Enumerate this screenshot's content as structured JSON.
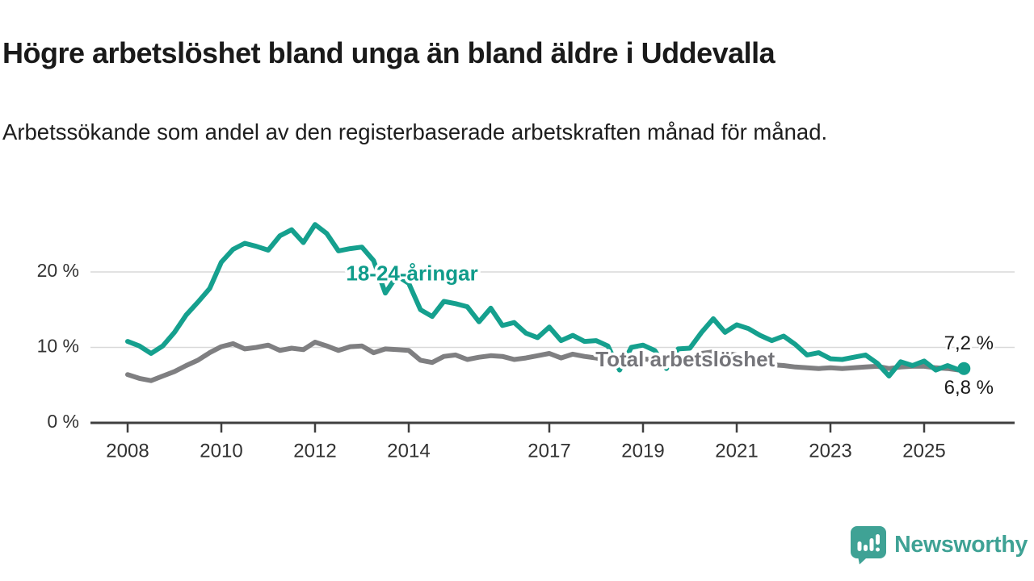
{
  "title": "Högre arbetslöshet bland unga än bland äldre i Uddevalla",
  "subtitle": "Arbetssökande som andel av den registerbaserade arbetskraften månad för månad.",
  "branding": {
    "logo_text": "Newsworthy",
    "logo_icon": "newsworthy-speech-bubble-bar-chart-icon",
    "logo_color": "#3fa295"
  },
  "colors": {
    "youth_line": "#15a08e",
    "total_line": "#7f7f81",
    "total_label": "#75757a",
    "axis": "#3f3f3f",
    "grid": "#d9d9d9",
    "text": "#333333",
    "value_label": "#1a1a1a",
    "background": "#ffffff"
  },
  "chart_data": {
    "type": "line",
    "title": "Högre arbetslöshet bland unga än bland äldre i Uddevalla",
    "xlabel": "",
    "ylabel": "Arbetssökande som andel av den registerbaserade arbetskraften",
    "x_unit": "decimal year (monthly series)",
    "x_range": [
      2008.0,
      2025.85
    ],
    "ylim": [
      0,
      28
    ],
    "grid": "horizontal",
    "legend_position": "inline-labels",
    "yticks": [
      {
        "value": 0,
        "label": "0 %"
      },
      {
        "value": 10,
        "label": "10 %"
      },
      {
        "value": 20,
        "label": "20 %"
      }
    ],
    "xticks": [
      {
        "value": 2008,
        "label": "2008"
      },
      {
        "value": 2010,
        "label": "2010"
      },
      {
        "value": 2012,
        "label": "2012"
      },
      {
        "value": 2014,
        "label": "2014"
      },
      {
        "value": 2017,
        "label": "2017"
      },
      {
        "value": 2019,
        "label": "2019"
      },
      {
        "value": 2021,
        "label": "2021"
      },
      {
        "value": 2023,
        "label": "2023"
      },
      {
        "value": 2025,
        "label": "2025"
      }
    ],
    "x": [
      2008.0,
      2008.25,
      2008.5,
      2008.75,
      2009.0,
      2009.25,
      2009.5,
      2009.75,
      2010.0,
      2010.25,
      2010.5,
      2010.75,
      2011.0,
      2011.25,
      2011.5,
      2011.75,
      2012.0,
      2012.25,
      2012.5,
      2012.75,
      2013.0,
      2013.25,
      2013.5,
      2013.75,
      2014.0,
      2014.25,
      2014.5,
      2014.75,
      2015.0,
      2015.25,
      2015.5,
      2015.75,
      2016.0,
      2016.25,
      2016.5,
      2016.75,
      2017.0,
      2017.25,
      2017.5,
      2017.75,
      2018.0,
      2018.25,
      2018.5,
      2018.75,
      2019.0,
      2019.25,
      2019.5,
      2019.75,
      2020.0,
      2020.25,
      2020.5,
      2020.75,
      2021.0,
      2021.25,
      2021.5,
      2021.75,
      2022.0,
      2022.25,
      2022.5,
      2022.75,
      2023.0,
      2023.25,
      2023.5,
      2023.75,
      2024.0,
      2024.25,
      2024.5,
      2024.75,
      2025.0,
      2025.25,
      2025.5,
      2025.75,
      2025.85
    ],
    "series": [
      {
        "name": "Total arbetslöshet",
        "color": "#7f7f81",
        "label_color": "#75757a",
        "line_width": 6,
        "end_dot": false,
        "end_label": {
          "text": "6,8 %",
          "position": "below"
        },
        "inline_label": {
          "text": "Total arbetslöshet",
          "x": 2019.9,
          "y": 8.25
        },
        "values": [
          6.4,
          5.9,
          5.6,
          6.2,
          6.8,
          7.6,
          8.3,
          9.3,
          10.1,
          10.5,
          9.8,
          10.0,
          10.3,
          9.6,
          9.9,
          9.7,
          10.7,
          10.2,
          9.6,
          10.1,
          10.2,
          9.3,
          9.8,
          9.7,
          9.6,
          8.3,
          8.0,
          8.8,
          9.0,
          8.4,
          8.7,
          8.9,
          8.8,
          8.4,
          8.6,
          8.9,
          9.2,
          8.6,
          9.1,
          8.8,
          8.6,
          8.2,
          7.8,
          8.3,
          8.5,
          8.3,
          8.0,
          8.4,
          8.6,
          9.2,
          9.4,
          9.2,
          9.0,
          8.3,
          8.0,
          7.7,
          7.6,
          7.4,
          7.3,
          7.2,
          7.3,
          7.2,
          7.3,
          7.4,
          7.5,
          7.2,
          7.4,
          7.5,
          7.5,
          7.3,
          7.2,
          7.0,
          6.8
        ]
      },
      {
        "name": "18-24-åringar",
        "color": "#15a08e",
        "label_color": "#109c8b",
        "line_width": 6,
        "end_dot": true,
        "end_label": {
          "text": "7,2 %",
          "position": "above"
        },
        "inline_label": {
          "text": "18-24-åringar",
          "x": 2014.07,
          "y": 19.6
        },
        "values": [
          10.8,
          10.2,
          9.2,
          10.2,
          12.0,
          14.3,
          16.0,
          17.8,
          21.3,
          23.0,
          23.8,
          23.4,
          22.9,
          24.8,
          25.6,
          23.9,
          26.3,
          25.1,
          22.8,
          23.1,
          23.3,
          21.5,
          17.2,
          19.5,
          18.5,
          15.0,
          14.1,
          16.1,
          15.8,
          15.4,
          13.4,
          15.2,
          12.9,
          13.3,
          11.9,
          11.3,
          12.7,
          10.9,
          11.6,
          10.8,
          10.9,
          10.2,
          7.0,
          10.0,
          10.3,
          9.6,
          7.2,
          9.8,
          9.9,
          12.0,
          13.8,
          12.0,
          13.0,
          12.5,
          11.6,
          10.9,
          11.5,
          10.4,
          9.0,
          9.3,
          8.5,
          8.4,
          8.7,
          9.0,
          7.9,
          6.2,
          8.1,
          7.6,
          8.2,
          7.0,
          7.6,
          7.0,
          7.2
        ]
      }
    ]
  }
}
